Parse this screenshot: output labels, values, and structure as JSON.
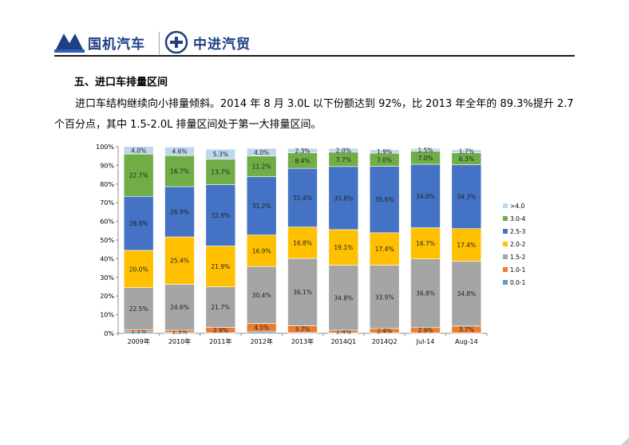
{
  "header": {
    "logo_left": "国机汽车",
    "logo_right": "中进汽贸"
  },
  "section": {
    "title": "五、进口车排量区间",
    "paragraph": "进口车结构继续向小排量倾斜。2014 年 8 月 3.0L 以下份额达到 92%，比 2013 年全年的 89.3%提升 2.7 个百分点，其中 1.5-2.0L 排量区间处于第一大排量区间。"
  },
  "chart_data": {
    "type": "bar",
    "stacked": true,
    "percent": true,
    "categories": [
      "2009年",
      "2010年",
      "2011年",
      "2012年",
      "2013年",
      "2014Q1",
      "2014Q2",
      "Jul-14",
      "Aug-14"
    ],
    "ylim": [
      0,
      100
    ],
    "yticks": [
      "0%",
      "10%",
      "20%",
      "30%",
      "40%",
      "50%",
      "60%",
      "70%",
      "80%",
      "90%",
      "100%"
    ],
    "legend_position": "right",
    "grid": false,
    "series": [
      {
        "name": "0.0-1.0",
        "color": "#5b9bd5",
        "values": [
          0.9,
          0.4,
          0.3,
          0.9,
          0.4,
          0.3,
          0.2,
          0.2,
          0.2
        ],
        "labels": [
          "",
          "",
          "",
          "",
          "",
          "",
          "",
          "",
          ""
        ]
      },
      {
        "name": "1.0-1.5",
        "color": "#ed7d31",
        "values": [
          1.1,
          1.3,
          2.9,
          4.5,
          3.7,
          1.4,
          2.4,
          2.9,
          3.7
        ],
        "labels": [
          "1.1%",
          "1.3%",
          "2.9%",
          "4.5%",
          "3.7%",
          "1.4%",
          "2.4%",
          "2.9%",
          "3.7%"
        ]
      },
      {
        "name": "1.5-2.0",
        "color": "#a5a5a5",
        "values": [
          22.5,
          24.6,
          21.7,
          30.4,
          36.1,
          34.8,
          33.9,
          36.8,
          34.8
        ],
        "labels": [
          "22.5%",
          "24.6%",
          "21.7%",
          "30.4%",
          "36.1%",
          "34.8%",
          "33.9%",
          "36.8%",
          "34.8%"
        ]
      },
      {
        "name": "2.0-2.5",
        "color": "#ffc000",
        "values": [
          20.0,
          25.4,
          21.9,
          16.9,
          16.8,
          19.1,
          17.4,
          16.7,
          17.4
        ],
        "labels": [
          "20.0%",
          "25.4%",
          "21.9%",
          "16.9%",
          "16.8%",
          "19.1%",
          "17.4%",
          "16.7%",
          "17.4%"
        ]
      },
      {
        "name": "2.5-3.0",
        "color": "#4472c4",
        "values": [
          28.9,
          26.9,
          32.9,
          31.2,
          31.4,
          33.8,
          35.6,
          34.0,
          34.3
        ],
        "labels": [
          "28.9%",
          "26.9%",
          "32.9%",
          "31.2%",
          "31.4%",
          "33.8%",
          "35.6%",
          "34.0%",
          "34.3%"
        ]
      },
      {
        "name": "3.0-4.0",
        "color": "#70ad47",
        "values": [
          22.7,
          16.7,
          13.7,
          11.2,
          8.4,
          7.7,
          7.0,
          7.0,
          6.3
        ],
        "labels": [
          "22.7%",
          "16.7%",
          "13.7%",
          "11.2%",
          "8.4%",
          "7.7%",
          "7.0%",
          "7.0%",
          "6.3%"
        ]
      },
      {
        "name": ">4.0",
        "color": "#bdd7ee",
        "values": [
          4.0,
          4.6,
          5.3,
          4.0,
          2.3,
          2.0,
          1.9,
          1.5,
          1.7
        ],
        "labels": [
          "4.0%",
          "4.6%",
          "5.3%",
          "4.0%",
          "2.3%",
          "2.0%",
          "1.9%",
          "1.5%",
          "1.7%"
        ]
      }
    ]
  }
}
